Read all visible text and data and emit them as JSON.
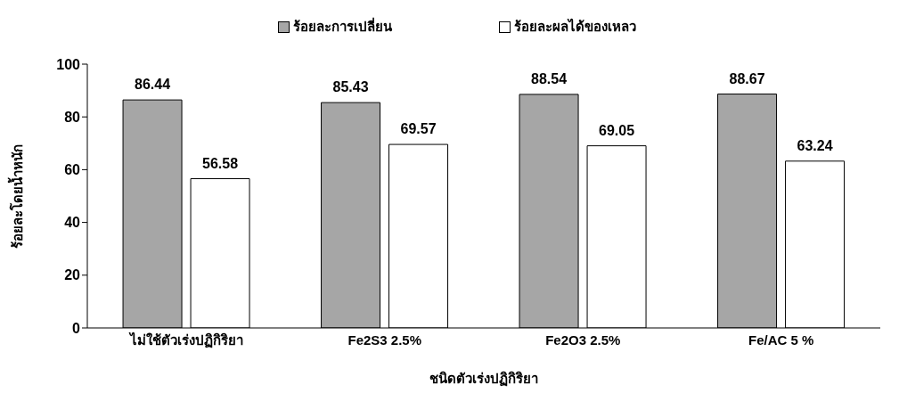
{
  "chart_data": {
    "type": "bar",
    "xlabel": "ชนิดตัวเร่งปฏิกิริยา",
    "ylabel": "ร้อยละโดยน้ำหนัก",
    "categories": [
      "ไม่ใช้ตัวเร่งปฏิกิริยา",
      "Fe2S3 2.5%",
      "Fe2O3 2.5%",
      "Fe/AC 5 %"
    ],
    "series": [
      {
        "name": "ร้อยละการเปลี่ยน",
        "color": "#a6a6a6",
        "values": [
          86.44,
          85.43,
          88.54,
          88.67
        ]
      },
      {
        "name": "ร้อยละผลได้ของเหลว",
        "color": "#ffffff",
        "values": [
          56.58,
          69.57,
          69.05,
          63.24
        ]
      }
    ],
    "ylim": [
      0,
      100
    ],
    "yticks": [
      0,
      20,
      40,
      60,
      80,
      100
    ],
    "grid": false,
    "legend": "top",
    "data_labels": true
  }
}
